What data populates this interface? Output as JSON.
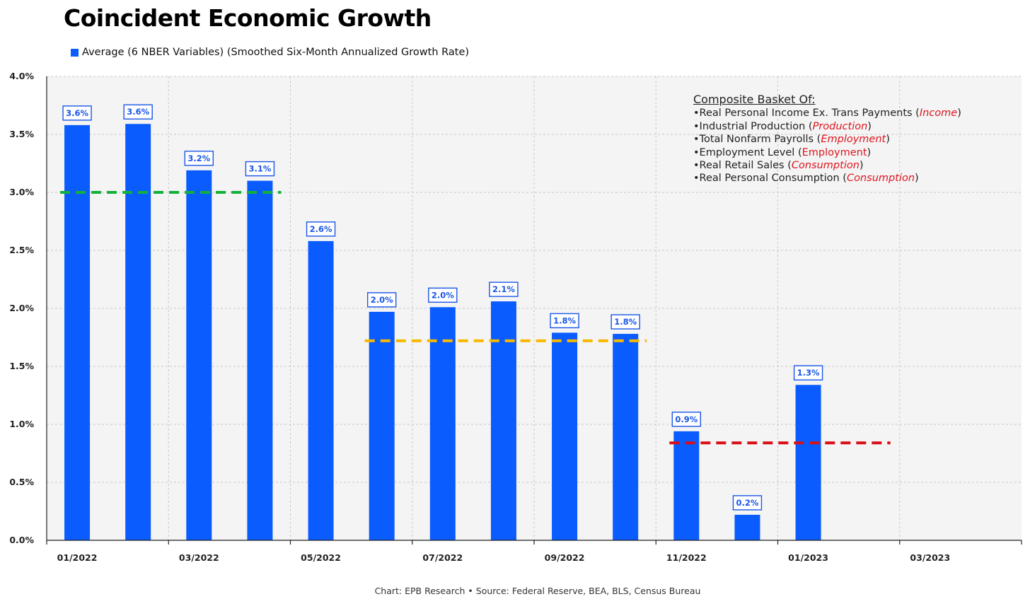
{
  "chart_data": {
    "type": "bar",
    "title": "Coincident Economic Growth",
    "source": "Chart: EPB Research  •  Source: Federal Reserve, BEA, BLS, Census Bureau",
    "ylim": [
      0,
      4.0
    ],
    "y_ticks": [
      "0.0%",
      "0.5%",
      "1.0%",
      "1.5%",
      "2.0%",
      "2.5%",
      "3.0%",
      "3.5%",
      "4.0%"
    ],
    "x_tick_labels": [
      "01/2022",
      "03/2022",
      "05/2022",
      "07/2022",
      "09/2022",
      "11/2022",
      "01/2023",
      "03/2023"
    ],
    "grid": true,
    "legend_placement": "top-left",
    "series": [
      {
        "name": "Average (6 NBER Variables) (Smoothed Six-Month Annualized Growth Rate)",
        "color": "#0a5cff",
        "values": [
          3.58,
          3.59,
          3.19,
          3.1,
          2.58,
          1.97,
          2.01,
          2.06,
          1.79,
          1.78,
          0.94,
          0.22,
          1.34
        ],
        "data_labels": [
          "3.6%",
          "3.6%",
          "3.2%",
          "3.1%",
          "2.6%",
          "2.0%",
          "2.0%",
          "2.1%",
          "1.8%",
          "1.8%",
          "0.9%",
          "0.2%",
          "1.3%"
        ]
      }
    ],
    "reference_lines": [
      {
        "color": "#13b13a",
        "value": 3.0,
        "from_bar": 0,
        "to_bar": 3
      },
      {
        "color": "#f9b800",
        "value": 1.72,
        "from_bar": 5,
        "to_bar": 9
      },
      {
        "color": "#d80f16",
        "value": 0.84,
        "from_bar": 10,
        "to_bar": 13
      }
    ]
  },
  "composite": {
    "heading": "Composite Basket Of:",
    "items": [
      {
        "text": "•Real Personal Income Ex. Trans Payments ",
        "category": "Income",
        "cat_style": "italic"
      },
      {
        "text": "•Industrial Production ",
        "category": "Production",
        "cat_style": "italic"
      },
      {
        "text": "•Total Nonfarm Payrolls ",
        "category": "Employment",
        "cat_style": "italic"
      },
      {
        "text": "•Employment Level ",
        "category": "Employment",
        "cat_style": "normal"
      },
      {
        "text": "•Real Retail Sales ",
        "category": "Consumption",
        "cat_style": "italic"
      },
      {
        "text": "•Real Personal Consumption ",
        "category": "Consumption",
        "cat_style": "italic"
      }
    ]
  },
  "colors": {
    "plot_bg": "#f4f4f4",
    "grid": "#c8c8c8",
    "label_box_border": "#1a56e8",
    "category_text": "#e0141e"
  }
}
